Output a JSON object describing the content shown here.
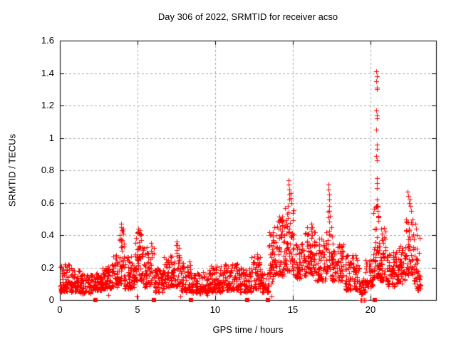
{
  "chart_data": {
    "type": "scatter",
    "title": "Day 306 of 2022, SRMTID for receiver acso",
    "xlabel": "GPS time / hours",
    "ylabel": "SRMTID / TECUs",
    "xlim": [
      0,
      24.2
    ],
    "ylim": [
      0,
      1.6
    ],
    "xticks": [
      0,
      5,
      10,
      15,
      20
    ],
    "yticks": [
      0,
      0.2,
      0.4,
      0.6,
      0.8,
      1,
      1.2,
      1.4,
      1.6
    ],
    "xtick_labels": [
      "0",
      "5",
      "10",
      "15",
      "20"
    ],
    "ytick_labels": [
      "0",
      "0.2",
      "0.4",
      "0.6",
      "0.8",
      "1",
      "1.2",
      "1.4",
      "1.6"
    ],
    "grid": true,
    "legend": "none",
    "marker": "plus",
    "marker_size_px": 7,
    "colors": {
      "points": "#ff0000",
      "grid": "#a8a8a8",
      "axis": "#000000",
      "background": "#ffffff",
      "text": "#000000"
    },
    "seed": 306,
    "band_segments": [
      [
        0.0,
        0.6,
        0.05,
        0.23,
        60
      ],
      [
        0.6,
        1.3,
        0.05,
        0.2,
        65
      ],
      [
        1.3,
        2.1,
        0.04,
        0.16,
        70
      ],
      [
        2.1,
        2.7,
        0.06,
        0.17,
        55
      ],
      [
        2.7,
        3.4,
        0.07,
        0.22,
        65
      ],
      [
        3.4,
        3.8,
        0.08,
        0.28,
        40
      ],
      [
        3.8,
        4.15,
        0.1,
        0.42,
        40
      ],
      [
        4.15,
        4.8,
        0.07,
        0.27,
        60
      ],
      [
        4.8,
        5.35,
        0.12,
        0.42,
        60
      ],
      [
        5.35,
        6.1,
        0.08,
        0.33,
        65
      ],
      [
        6.1,
        6.7,
        0.05,
        0.2,
        55
      ],
      [
        6.7,
        7.3,
        0.07,
        0.28,
        55
      ],
      [
        7.3,
        7.75,
        0.08,
        0.34,
        40
      ],
      [
        7.75,
        8.4,
        0.05,
        0.24,
        55
      ],
      [
        8.4,
        9.6,
        0.04,
        0.17,
        100
      ],
      [
        9.6,
        10.6,
        0.05,
        0.21,
        90
      ],
      [
        10.6,
        11.6,
        0.06,
        0.23,
        90
      ],
      [
        11.6,
        12.3,
        0.05,
        0.2,
        65
      ],
      [
        12.3,
        12.9,
        0.07,
        0.27,
        55
      ],
      [
        12.9,
        13.45,
        0.05,
        0.17,
        50
      ],
      [
        13.45,
        13.75,
        0.1,
        0.42,
        40
      ],
      [
        13.75,
        14.45,
        0.15,
        0.52,
        80
      ],
      [
        14.45,
        15.05,
        0.18,
        0.6,
        70
      ],
      [
        15.05,
        15.6,
        0.13,
        0.35,
        55
      ],
      [
        15.6,
        16.45,
        0.15,
        0.45,
        85
      ],
      [
        16.45,
        17.15,
        0.12,
        0.38,
        65
      ],
      [
        17.15,
        17.5,
        0.15,
        0.55,
        35
      ],
      [
        17.5,
        18.3,
        0.12,
        0.35,
        70
      ],
      [
        18.3,
        19.3,
        0.06,
        0.28,
        85
      ],
      [
        19.3,
        19.65,
        0.03,
        0.15,
        25
      ],
      [
        19.65,
        20.15,
        0.08,
        0.25,
        45
      ],
      [
        20.15,
        20.55,
        0.14,
        0.58,
        55
      ],
      [
        20.55,
        21.05,
        0.12,
        0.45,
        50
      ],
      [
        21.05,
        21.7,
        0.08,
        0.3,
        60
      ],
      [
        21.7,
        22.25,
        0.1,
        0.35,
        55
      ],
      [
        22.25,
        22.75,
        0.15,
        0.5,
        50
      ],
      [
        22.75,
        23.2,
        0.06,
        0.4,
        45
      ]
    ],
    "spike_points": [
      [
        3.93,
        0.47
      ],
      [
        3.96,
        0.45
      ],
      [
        3.98,
        0.43
      ],
      [
        4.02,
        0.42
      ],
      [
        4.06,
        0.44
      ],
      [
        4.08,
        0.41
      ],
      [
        5.02,
        0.44
      ],
      [
        5.05,
        0.42
      ],
      [
        5.08,
        0.41
      ],
      [
        5.12,
        0.43
      ],
      [
        5.16,
        0.4
      ],
      [
        5.88,
        0.35
      ],
      [
        5.92,
        0.33
      ],
      [
        7.52,
        0.36
      ],
      [
        7.56,
        0.34
      ],
      [
        12.68,
        0.28
      ],
      [
        12.72,
        0.26
      ],
      [
        14.72,
        0.74
      ],
      [
        14.73,
        0.71
      ],
      [
        14.75,
        0.68
      ],
      [
        14.76,
        0.65
      ],
      [
        14.78,
        0.62
      ],
      [
        14.84,
        0.66
      ],
      [
        14.86,
        0.63
      ],
      [
        14.88,
        0.6
      ],
      [
        16.18,
        0.47
      ],
      [
        16.22,
        0.45
      ],
      [
        17.28,
        0.71
      ],
      [
        17.29,
        0.68
      ],
      [
        17.31,
        0.65
      ],
      [
        17.32,
        0.62
      ],
      [
        17.33,
        0.58
      ],
      [
        17.34,
        0.55
      ],
      [
        17.36,
        0.52
      ],
      [
        20.36,
        1.41
      ],
      [
        20.38,
        1.38
      ],
      [
        20.37,
        1.35
      ],
      [
        20.39,
        1.31
      ],
      [
        20.38,
        1.3
      ],
      [
        20.37,
        1.17
      ],
      [
        20.39,
        1.14
      ],
      [
        20.38,
        1.12
      ],
      [
        20.37,
        1.05
      ],
      [
        20.38,
        0.96
      ],
      [
        20.39,
        0.93
      ],
      [
        20.37,
        0.89
      ],
      [
        20.38,
        0.86
      ],
      [
        20.4,
        0.75
      ],
      [
        20.38,
        0.72
      ],
      [
        20.39,
        0.69
      ],
      [
        20.41,
        0.62
      ],
      [
        20.42,
        0.58
      ],
      [
        20.46,
        0.55
      ],
      [
        20.48,
        0.52
      ],
      [
        20.5,
        0.49
      ],
      [
        20.68,
        0.44
      ],
      [
        20.72,
        0.41
      ],
      [
        20.75,
        0.38
      ],
      [
        22.38,
        0.67
      ],
      [
        22.42,
        0.64
      ],
      [
        22.45,
        0.6
      ],
      [
        22.52,
        0.62
      ],
      [
        22.56,
        0.58
      ],
      [
        22.6,
        0.55
      ],
      [
        22.86,
        0.47
      ],
      [
        22.9,
        0.44
      ],
      [
        22.94,
        0.4
      ]
    ],
    "low_outliers": [
      [
        3.1,
        0.03
      ],
      [
        4.95,
        0.02
      ],
      [
        7.75,
        0.02
      ],
      [
        9.5,
        0.03
      ],
      [
        13.6,
        0.02
      ]
    ],
    "zero_squares": [
      2.27,
      6.05,
      8.42,
      12.05,
      13.37,
      20.27
    ],
    "zero_plus_marks": [
      19.32,
      19.41,
      19.5,
      19.59,
      19.66
    ]
  }
}
